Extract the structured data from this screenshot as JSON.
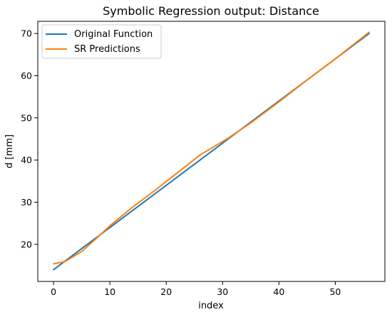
{
  "chart_data": {
    "type": "line",
    "title": "Symbolic Regression output: Distance",
    "xlabel": "index",
    "ylabel": "d [mm]",
    "xlim": [
      -2.8,
      58.8
    ],
    "ylim": [
      11.2,
      72.9
    ],
    "xticks": [
      0,
      10,
      20,
      30,
      40,
      50
    ],
    "yticks": [
      20,
      30,
      40,
      50,
      60,
      70
    ],
    "legend_position": "upper left",
    "grid": false,
    "series": [
      {
        "name": "Original Function",
        "color": "#1f77b4",
        "x": [
          0,
          56
        ],
        "y": [
          14.0,
          70.0
        ]
      },
      {
        "name": "SR Predictions",
        "color": "#ff7f0e",
        "x": [
          0,
          2,
          5,
          8,
          10,
          14,
          18,
          22,
          26,
          28,
          31,
          35,
          40,
          45,
          50,
          56
        ],
        "y": [
          15.4,
          15.9,
          18.3,
          21.9,
          24.4,
          28.8,
          32.8,
          37.0,
          41.2,
          42.8,
          45.2,
          48.8,
          53.8,
          59.0,
          64.0,
          70.3
        ]
      }
    ]
  }
}
